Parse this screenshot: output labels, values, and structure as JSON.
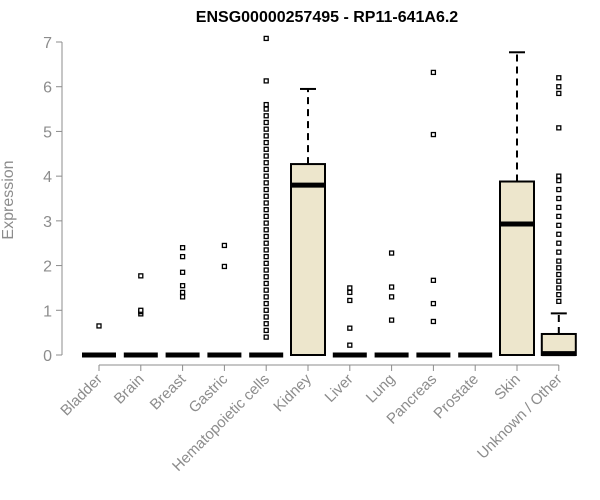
{
  "chart_data": {
    "type": "boxplot",
    "title": "ENSG00000257495 - RP11-641A6.2",
    "ylabel": "Expression",
    "xlabel": "",
    "ylim": [
      0,
      7
    ],
    "yticks": [
      0,
      1,
      2,
      3,
      4,
      5,
      6,
      7
    ],
    "grid": false,
    "box_fill": "#ede6cc",
    "categories": [
      "Bladder",
      "Brain",
      "Breast",
      "Gastric",
      "Hematopoietic cells",
      "Kidney",
      "Liver",
      "Lung",
      "Pancreas",
      "Prostate",
      "Skin",
      "Unknown / Other"
    ],
    "boxes": [
      {
        "category": "Bladder",
        "q1": 0,
        "median": 0,
        "q3": 0,
        "whisker_low": 0,
        "whisker_high": 0,
        "outliers": [
          0.65
        ]
      },
      {
        "category": "Brain",
        "q1": 0,
        "median": 0,
        "q3": 0,
        "whisker_low": 0,
        "whisker_high": 0,
        "outliers": [
          0.92,
          0.97,
          1.0,
          1.77
        ]
      },
      {
        "category": "Breast",
        "q1": 0,
        "median": 0,
        "q3": 0,
        "whisker_low": 0,
        "whisker_high": 0,
        "outliers": [
          1.3,
          1.4,
          1.55,
          1.85,
          2.2,
          2.4
        ]
      },
      {
        "category": "Gastric",
        "q1": 0,
        "median": 0,
        "q3": 0,
        "whisker_low": 0,
        "whisker_high": 0,
        "outliers": [
          1.98,
          2.45
        ]
      },
      {
        "category": "Hematopoietic cells",
        "q1": 0,
        "median": 0,
        "q3": 0,
        "whisker_low": 0,
        "whisker_high": 0,
        "outliers": [
          0.4,
          0.55,
          0.7,
          0.85,
          1.0,
          1.15,
          1.3,
          1.45,
          1.6,
          1.75,
          1.9,
          2.05,
          2.2,
          2.35,
          2.5,
          2.65,
          2.8,
          2.95,
          3.1,
          3.25,
          3.4,
          3.55,
          3.7,
          3.85,
          4.0,
          4.15,
          4.3,
          4.45,
          4.6,
          4.75,
          4.9,
          5.05,
          5.2,
          5.35,
          5.5,
          5.6,
          6.13,
          7.08
        ]
      },
      {
        "category": "Kidney",
        "q1": 0,
        "median": 3.8,
        "q3": 4.27,
        "whisker_low": 0,
        "whisker_high": 5.95,
        "outliers": []
      },
      {
        "category": "Liver",
        "q1": 0,
        "median": 0,
        "q3": 0,
        "whisker_low": 0,
        "whisker_high": 0,
        "outliers": [
          0.22,
          0.6,
          1.22,
          1.4,
          1.5
        ]
      },
      {
        "category": "Lung",
        "q1": 0,
        "median": 0,
        "q3": 0,
        "whisker_low": 0,
        "whisker_high": 0,
        "outliers": [
          0.78,
          1.3,
          1.52,
          2.28
        ]
      },
      {
        "category": "Pancreas",
        "q1": 0,
        "median": 0,
        "q3": 0,
        "whisker_low": 0,
        "whisker_high": 0,
        "outliers": [
          0.75,
          1.15,
          1.67,
          4.93,
          6.32
        ]
      },
      {
        "category": "Prostate",
        "q1": 0,
        "median": 0,
        "q3": 0,
        "whisker_low": 0,
        "whisker_high": 0,
        "outliers": []
      },
      {
        "category": "Skin",
        "q1": 0,
        "median": 2.93,
        "q3": 3.88,
        "whisker_low": 0,
        "whisker_high": 6.77,
        "outliers": []
      },
      {
        "category": "Unknown / Other",
        "q1": 0,
        "median": 0.03,
        "q3": 0.47,
        "whisker_low": 0,
        "whisker_high": 0.93,
        "outliers": [
          1.2,
          1.35,
          1.5,
          1.65,
          1.8,
          1.95,
          2.1,
          2.3,
          2.5,
          2.7,
          2.9,
          3.1,
          3.3,
          3.5,
          3.7,
          3.9,
          4.0,
          5.08,
          5.85,
          6.0,
          6.2
        ]
      }
    ]
  }
}
